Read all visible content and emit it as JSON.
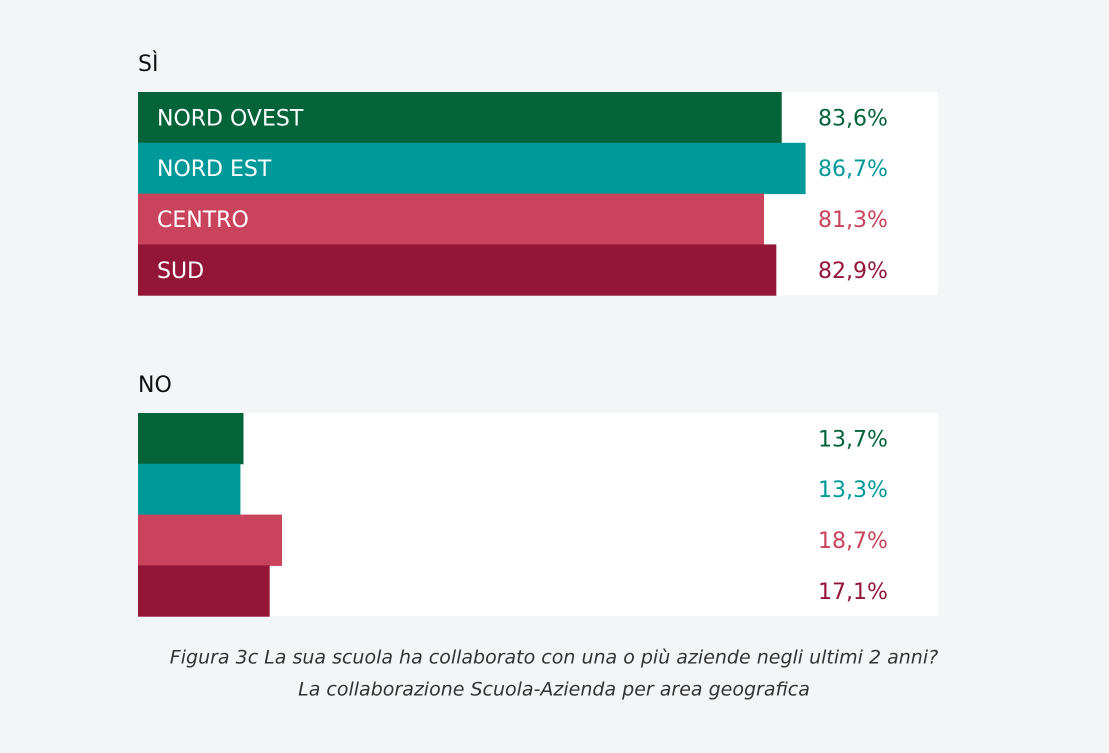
{
  "chart_data": [
    {
      "type": "bar",
      "title": "SÌ",
      "categories": [
        "NORD OVEST",
        "NORD EST",
        "CENTRO",
        "SUD"
      ],
      "values": [
        83.6,
        86.7,
        81.3,
        82.9
      ],
      "value_labels": [
        "83,6%",
        "86,7%",
        "81,3%",
        "82,9%"
      ],
      "colors": [
        "#03643a",
        "#00999a",
        "#c9435c",
        "#931538"
      ]
    },
    {
      "type": "bar",
      "title": "NO",
      "values": [
        13.7,
        13.3,
        18.7,
        17.1
      ],
      "value_labels": [
        "13,7%",
        "13,3%",
        "18,7%",
        "17,1%"
      ],
      "colors": [
        "#03643a",
        "#00999a",
        "#c9435c",
        "#931538"
      ]
    }
  ],
  "caption": [
    "Figura 3c La sua scuola ha collaborato con una o più aziende negli ultimi 2 anni?",
    "La collaborazione Scuola-Azienda per area geografica"
  ]
}
